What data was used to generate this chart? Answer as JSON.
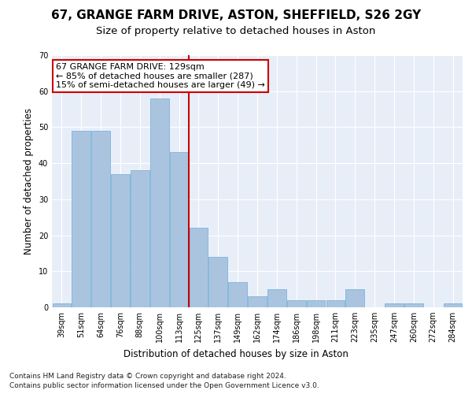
{
  "title": "67, GRANGE FARM DRIVE, ASTON, SHEFFIELD, S26 2GY",
  "subtitle": "Size of property relative to detached houses in Aston",
  "xlabel": "Distribution of detached houses by size in Aston",
  "ylabel": "Number of detached properties",
  "categories": [
    "39sqm",
    "51sqm",
    "64sqm",
    "76sqm",
    "88sqm",
    "100sqm",
    "113sqm",
    "125sqm",
    "137sqm",
    "149sqm",
    "162sqm",
    "174sqm",
    "186sqm",
    "198sqm",
    "211sqm",
    "223sqm",
    "235sqm",
    "247sqm",
    "260sqm",
    "272sqm",
    "284sqm"
  ],
  "values": [
    1,
    49,
    49,
    37,
    38,
    58,
    43,
    22,
    14,
    7,
    3,
    5,
    2,
    2,
    2,
    5,
    0,
    1,
    1,
    0,
    1
  ],
  "bar_color": "#aac4e0",
  "bar_edge_color": "#6baed6",
  "vline_x_index": 6.5,
  "vline_color": "#cc0000",
  "annotation_text": "67 GRANGE FARM DRIVE: 129sqm\n← 85% of detached houses are smaller (287)\n15% of semi-detached houses are larger (49) →",
  "annotation_box_color": "#ffffff",
  "annotation_box_edge_color": "#cc0000",
  "ylim": [
    0,
    70
  ],
  "yticks": [
    0,
    10,
    20,
    30,
    40,
    50,
    60,
    70
  ],
  "footnote1": "Contains HM Land Registry data © Crown copyright and database right 2024.",
  "footnote2": "Contains public sector information licensed under the Open Government Licence v3.0.",
  "bg_color": "#e8eef8",
  "fig_bg_color": "#ffffff",
  "grid_color": "#ffffff",
  "title_fontsize": 11,
  "subtitle_fontsize": 9.5,
  "axis_label_fontsize": 8.5,
  "tick_fontsize": 7,
  "footnote_fontsize": 6.5,
  "annotation_fontsize": 8
}
